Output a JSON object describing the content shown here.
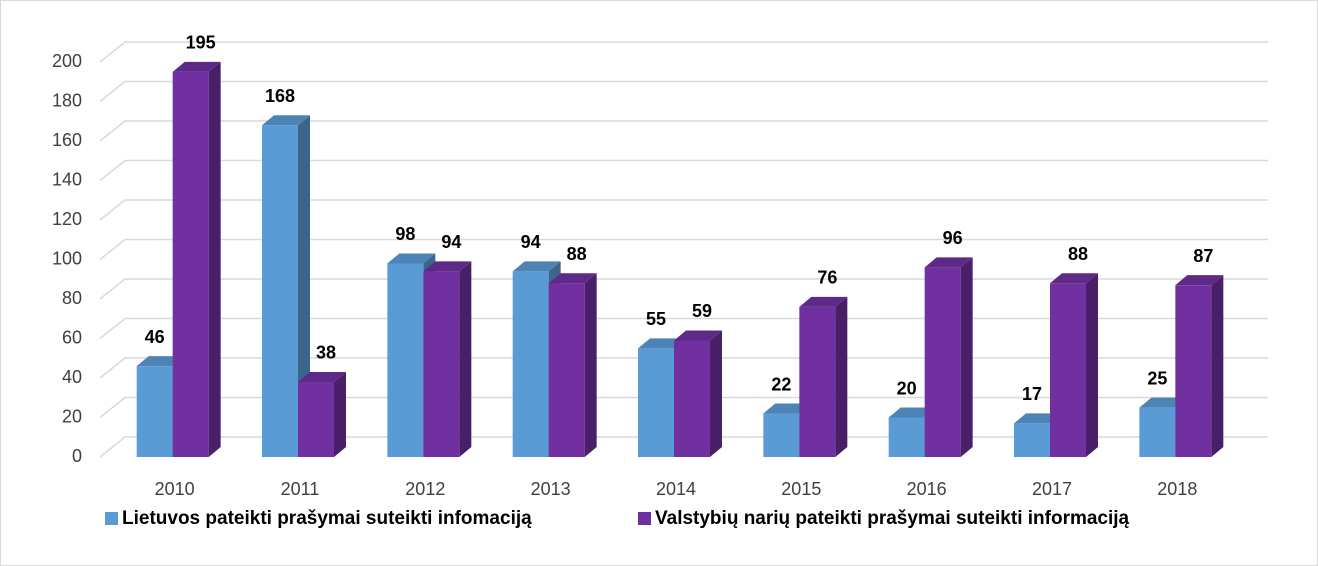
{
  "chart_data": {
    "type": "bar3d",
    "categories": [
      "2010",
      "2011",
      "2012",
      "2013",
      "2014",
      "2015",
      "2016",
      "2017",
      "2018"
    ],
    "series": [
      {
        "name": "Lietuvos pateikti prašymai suteikti infomaciją",
        "color": "#5b9bd5",
        "values": [
          46,
          168,
          98,
          94,
          55,
          22,
          20,
          17,
          25
        ]
      },
      {
        "name": "Valstybių narių pateikti prašymai suteikti informaciją",
        "color": "#7030a0",
        "values": [
          195,
          38,
          94,
          88,
          59,
          76,
          96,
          88,
          87
        ]
      }
    ],
    "ylim": [
      0,
      200
    ],
    "yticks": [
      0,
      20,
      40,
      60,
      80,
      100,
      120,
      140,
      160,
      180,
      200
    ],
    "grid": true,
    "legend": "bottom"
  }
}
